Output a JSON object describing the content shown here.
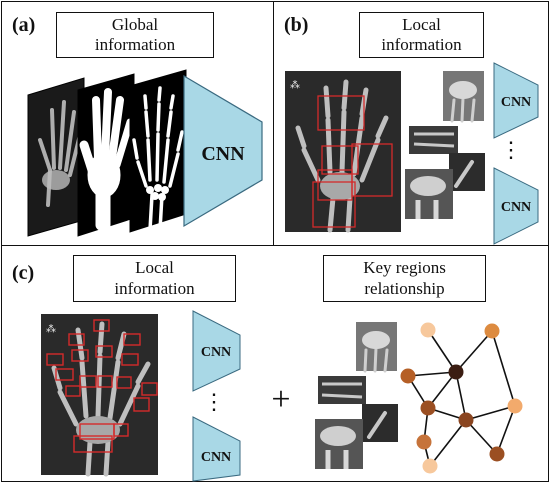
{
  "panels": {
    "a": {
      "label": "(a)",
      "title_line1": "Global",
      "title_line2": "information",
      "cnn_label": "CNN"
    },
    "b": {
      "label": "(b)",
      "title_line1": "Local",
      "title_line2": "information",
      "cnn_label_top": "CNN",
      "cnn_label_bottom": "CNN",
      "ellipsis": "⋮"
    },
    "c": {
      "label": "(c)",
      "title_left_line1": "Local",
      "title_left_line2": "information",
      "title_right_line1": "Key regions",
      "title_right_line2": "relationship",
      "cnn_label_top": "CNN",
      "cnn_label_bottom": "CNN",
      "ellipsis": "⋮",
      "plus": "+"
    }
  },
  "colors": {
    "cnn_fill": "#a9d8e6",
    "region_box": "#d42a2a",
    "node_dark": "#3b1d12",
    "node_brown": "#9b4f22",
    "node_orange": "#dd8b40",
    "node_light": "#f7c89c"
  }
}
